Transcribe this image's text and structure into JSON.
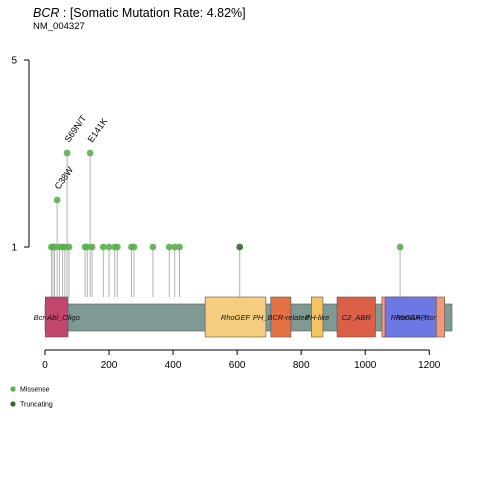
{
  "header": {
    "gene": "BCR",
    "rate_text": " : [Somatic Mutation Rate: 4.82%]",
    "transcript": "NM_004327"
  },
  "chart_data": {
    "type": "lollipop",
    "protein_length": 1271,
    "xlim": [
      0,
      1271
    ],
    "xticks": [
      0,
      200,
      400,
      600,
      800,
      1000,
      1200
    ],
    "yticks": [
      1,
      5
    ],
    "colors": {
      "missense": "#5aaf4e",
      "truncating": "#2e6e29",
      "backbone": "#7f9a95",
      "stem": "#b3b3b3"
    },
    "domains": [
      {
        "name": "Bcr-Abl_Oligo",
        "start": 1,
        "end": 72,
        "color": "#c2476c"
      },
      {
        "name": "RhoGEF",
        "start": 500,
        "end": 690,
        "color": "#f4ce7e"
      },
      {
        "name": "PH_BCR-related",
        "start": 705,
        "end": 768,
        "color": "#e37144"
      },
      {
        "name": "PH-like",
        "start": 832,
        "end": 868,
        "color": "#f3c460"
      },
      {
        "name": "C2_ABR",
        "start": 912,
        "end": 1032,
        "color": "#dc5f48"
      },
      {
        "name": "RhoGAP_Bcr",
        "start": 1052,
        "end": 1248,
        "color": "#f2997c"
      },
      {
        "name": "RhoGAP",
        "start": 1062,
        "end": 1222,
        "color": "#6d78e4"
      }
    ],
    "mutations": [
      {
        "pos": 20,
        "count": 1,
        "type": "missense",
        "label": ""
      },
      {
        "pos": 25,
        "count": 1,
        "type": "missense",
        "label": ""
      },
      {
        "pos": 30,
        "count": 1,
        "type": "missense",
        "label": ""
      },
      {
        "pos": 38,
        "count": 2,
        "type": "missense",
        "label": "C38W"
      },
      {
        "pos": 45,
        "count": 1,
        "type": "missense",
        "label": ""
      },
      {
        "pos": 55,
        "count": 1,
        "type": "missense",
        "label": ""
      },
      {
        "pos": 62,
        "count": 1,
        "type": "missense",
        "label": ""
      },
      {
        "pos": 69,
        "count": 3,
        "type": "missense",
        "label": "S69N/T"
      },
      {
        "pos": 75,
        "count": 1,
        "type": "missense",
        "label": ""
      },
      {
        "pos": 125,
        "count": 1,
        "type": "missense",
        "label": ""
      },
      {
        "pos": 132,
        "count": 1,
        "type": "missense",
        "label": ""
      },
      {
        "pos": 141,
        "count": 3,
        "type": "missense",
        "label": "E141K"
      },
      {
        "pos": 147,
        "count": 1,
        "type": "missense",
        "label": ""
      },
      {
        "pos": 182,
        "count": 1,
        "type": "missense",
        "label": ""
      },
      {
        "pos": 200,
        "count": 1,
        "type": "missense",
        "label": ""
      },
      {
        "pos": 218,
        "count": 1,
        "type": "missense",
        "label": ""
      },
      {
        "pos": 226,
        "count": 1,
        "type": "missense",
        "label": ""
      },
      {
        "pos": 270,
        "count": 1,
        "type": "missense",
        "label": ""
      },
      {
        "pos": 278,
        "count": 1,
        "type": "missense",
        "label": ""
      },
      {
        "pos": 337,
        "count": 1,
        "type": "missense",
        "label": ""
      },
      {
        "pos": 388,
        "count": 1,
        "type": "missense",
        "label": ""
      },
      {
        "pos": 405,
        "count": 1,
        "type": "missense",
        "label": ""
      },
      {
        "pos": 420,
        "count": 1,
        "type": "missense",
        "label": ""
      },
      {
        "pos": 608,
        "count": 1,
        "type": "truncating",
        "label": ""
      },
      {
        "pos": 1109,
        "count": 1,
        "type": "missense",
        "label": ""
      }
    ],
    "legend": [
      {
        "label": "Missense",
        "type": "missense"
      },
      {
        "label": "Truncating",
        "type": "truncating"
      }
    ]
  }
}
